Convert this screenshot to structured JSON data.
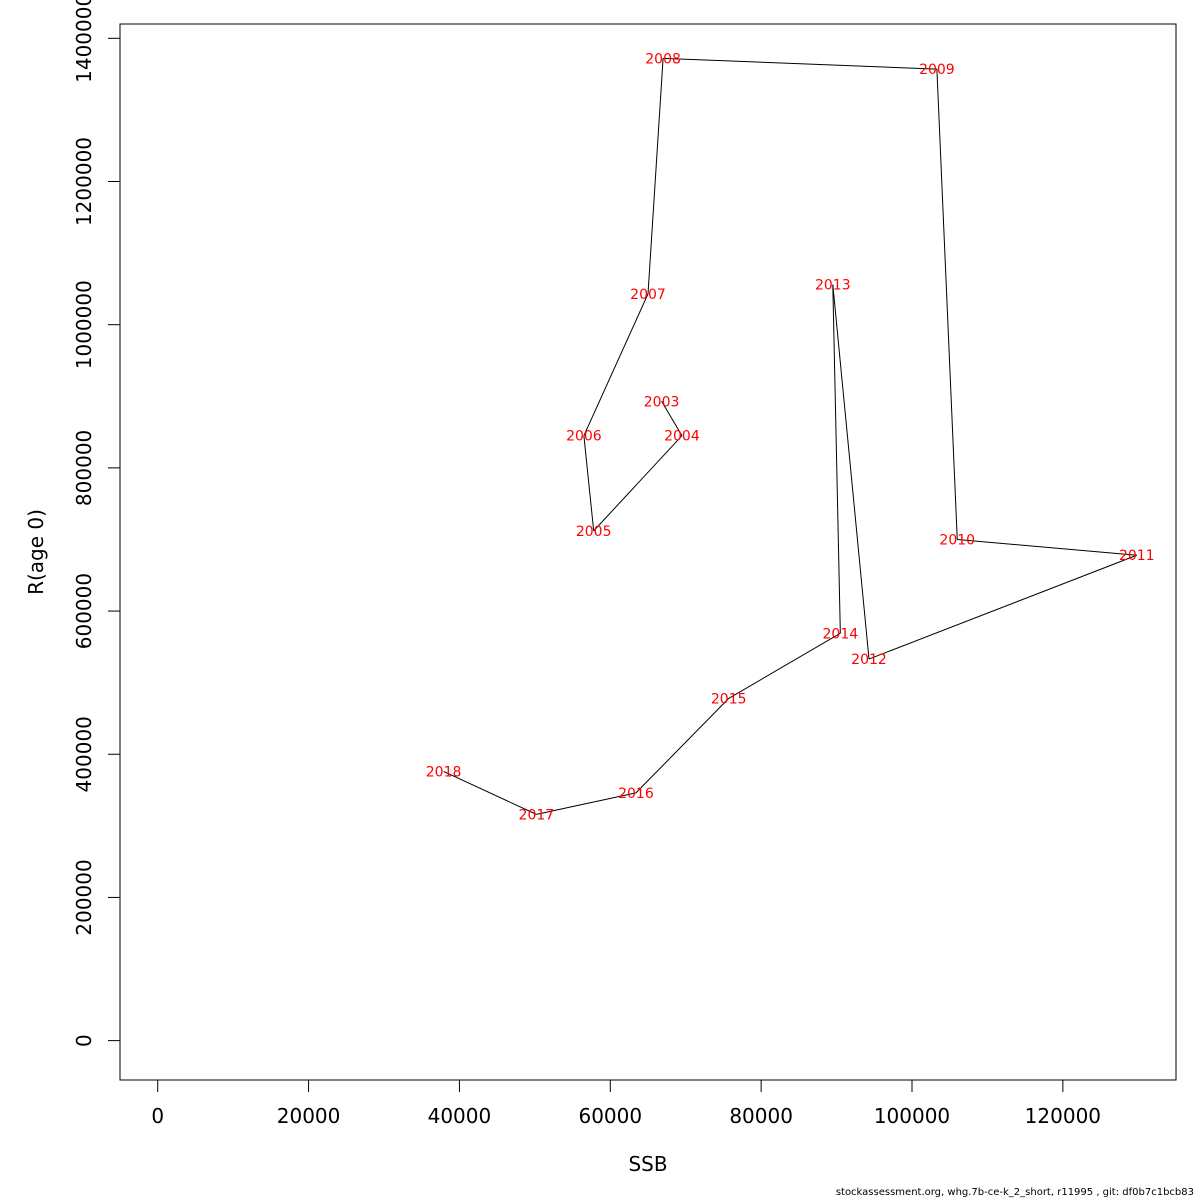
{
  "colors": {
    "point_label": "#ff0000",
    "line": "#000000",
    "axis": "#000000"
  },
  "footer": "stockassessment.org, whg.7b-ce-k_2_short, r11995 , git: df0b7c1bcb83",
  "chart_data": {
    "type": "line",
    "xlabel": "SSB",
    "ylabel": "R(age 0)",
    "xlim": [
      -5000,
      135000
    ],
    "ylim": [
      -55000,
      1420000
    ],
    "x_ticks": [
      0,
      20000,
      40000,
      60000,
      80000,
      100000,
      120000
    ],
    "y_ticks": [
      0,
      200000,
      400000,
      600000,
      800000,
      1000000,
      1200000,
      1400000
    ],
    "grid": false,
    "points": [
      {
        "label": "2003",
        "x": 66800,
        "y": 893000
      },
      {
        "label": "2004",
        "x": 69500,
        "y": 845000
      },
      {
        "label": "2005",
        "x": 57800,
        "y": 712000
      },
      {
        "label": "2006",
        "x": 56500,
        "y": 845000
      },
      {
        "label": "2007",
        "x": 65000,
        "y": 1043000
      },
      {
        "label": "2008",
        "x": 67000,
        "y": 1372000
      },
      {
        "label": "2009",
        "x": 103300,
        "y": 1357000
      },
      {
        "label": "2010",
        "x": 106000,
        "y": 700000
      },
      {
        "label": "2011",
        "x": 129800,
        "y": 678000
      },
      {
        "label": "2012",
        "x": 94300,
        "y": 533000
      },
      {
        "label": "2013",
        "x": 89500,
        "y": 1056000
      },
      {
        "label": "2014",
        "x": 90500,
        "y": 569000
      },
      {
        "label": "2015",
        "x": 75700,
        "y": 478000
      },
      {
        "label": "2016",
        "x": 63400,
        "y": 346000
      },
      {
        "label": "2017",
        "x": 50200,
        "y": 316000
      },
      {
        "label": "2018",
        "x": 37900,
        "y": 376000
      }
    ]
  }
}
